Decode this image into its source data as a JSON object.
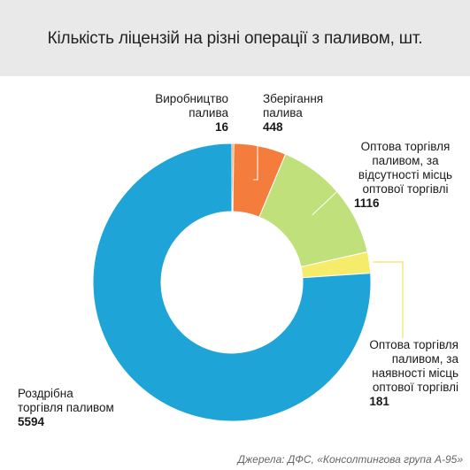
{
  "title": "Кількість ліцензій на різні операції з паливом, шт.",
  "source": "Джерела: ДФС, «Консолтингова група А-95»",
  "chart_data": {
    "type": "pie",
    "title": "Кількість ліцензій на різні операції з паливом, шт.",
    "donut": true,
    "slices": [
      {
        "label": "Виробництво\nпалива",
        "value": 16,
        "display": "16",
        "color": "#f47c3c"
      },
      {
        "label": "Зберігання\nпалива",
        "value": 448,
        "display": "448",
        "color": "#f47c3c"
      },
      {
        "label": "Оптова торгівля\nпаливом, за\nвідсутності місць\nоптової торгівлі",
        "value": 1116,
        "display": "1116",
        "color": "#bfe07a"
      },
      {
        "label": "Оптова торгівля\nпаливом, за\nнаявності місць\nоптової торгівлі",
        "value": 181,
        "display": "181",
        "color": "#f4ec6a"
      },
      {
        "label": "Роздрібна\nторгівля паливом",
        "value": 5594,
        "display": "5594",
        "color": "#1ea4d6"
      }
    ]
  }
}
